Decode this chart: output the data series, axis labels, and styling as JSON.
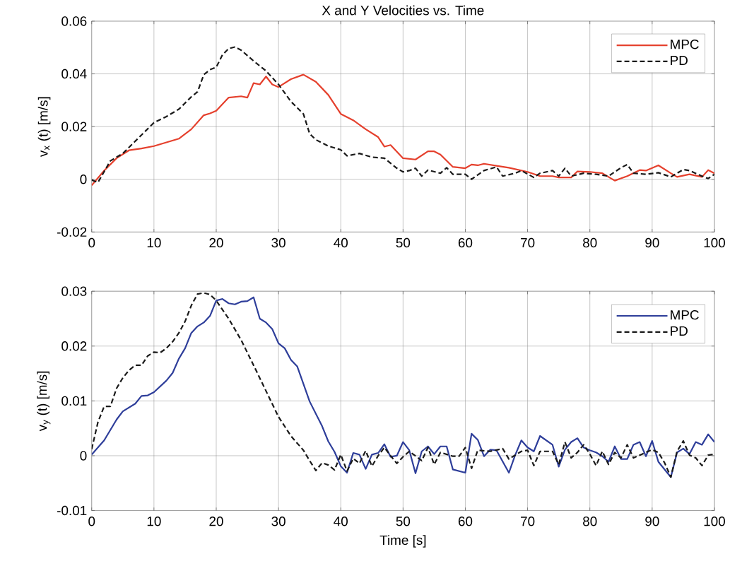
{
  "chart_data": [
    {
      "type": "line",
      "title": "X and Y Velocities vs. Time",
      "ylabel": "v$_{x}$ (t) [m/s]",
      "xlim": [
        0,
        100
      ],
      "xticks": [
        0,
        10,
        20,
        30,
        40,
        50,
        60,
        70,
        80,
        90,
        100
      ],
      "ylim": [
        -0.02,
        0.06
      ],
      "yticks": [
        -0.02,
        0,
        0.02,
        0.04,
        0.06
      ],
      "grid": true,
      "legend": "top right",
      "series": [
        {
          "name": "MPC",
          "color": "#e5402d",
          "line_style": "solid",
          "x": [
            0,
            2,
            4,
            6,
            8,
            10,
            12,
            14,
            16,
            18,
            19,
            20,
            22,
            24,
            25,
            26,
            27,
            28,
            29,
            30,
            32,
            34,
            36,
            38,
            40,
            42,
            44,
            46,
            47,
            48,
            50,
            52,
            54,
            55,
            56,
            58,
            60,
            61,
            62,
            63,
            65,
            67,
            70,
            72,
            74,
            75,
            77,
            78,
            80,
            82,
            84,
            86,
            88,
            89,
            91,
            93,
            94,
            96,
            98,
            99,
            100
          ],
          "values": [
            -0.0023,
            0.0033,
            0.008,
            0.011,
            0.0117,
            0.0126,
            0.014,
            0.0154,
            0.019,
            0.0243,
            0.025,
            0.026,
            0.031,
            0.0315,
            0.031,
            0.0365,
            0.036,
            0.039,
            0.036,
            0.035,
            0.038,
            0.0397,
            0.037,
            0.032,
            0.0248,
            0.0224,
            0.019,
            0.016,
            0.0124,
            0.013,
            0.008,
            0.0075,
            0.0106,
            0.0106,
            0.0094,
            0.0047,
            0.0042,
            0.0056,
            0.0053,
            0.0059,
            0.0051,
            0.0044,
            0.0028,
            0.0012,
            0.0012,
            0.0007,
            0.0007,
            0.003,
            0.0028,
            0.0023,
            -0.0005,
            0.0012,
            0.0035,
            0.0033,
            0.0053,
            0.0023,
            0.0009,
            0.0019,
            0.0009,
            0.0035,
            0.0023
          ]
        },
        {
          "name": "PD",
          "color": "#1a1a1a",
          "line_style": "dashed",
          "x": [
            0,
            1,
            3,
            5,
            8,
            10,
            12,
            14,
            16,
            17,
            18,
            19,
            20,
            21,
            22,
            23,
            24,
            26,
            28,
            30,
            32,
            34,
            35,
            36,
            38,
            40,
            41,
            43,
            45,
            47,
            49,
            50,
            51,
            52,
            53,
            54,
            56,
            57,
            58,
            60,
            61,
            63,
            65,
            66,
            68,
            69,
            71,
            72,
            74,
            75,
            76,
            77,
            79,
            81,
            83,
            85,
            86,
            87,
            89,
            91,
            93,
            95,
            96,
            98,
            99,
            100
          ],
          "values": [
            -0.0003,
            -0.0012,
            0.007,
            0.0098,
            0.0168,
            0.0215,
            0.0238,
            0.0266,
            0.0313,
            0.0332,
            0.0397,
            0.0416,
            0.0425,
            0.0472,
            0.0496,
            0.0502,
            0.049,
            0.0449,
            0.0411,
            0.036,
            0.0295,
            0.0248,
            0.0173,
            0.015,
            0.0126,
            0.0112,
            0.0089,
            0.0098,
            0.0084,
            0.008,
            0.0042,
            0.0028,
            0.0033,
            0.0042,
            0.0012,
            0.0035,
            0.0023,
            0.0044,
            0.0019,
            0.0019,
            0,
            0.0033,
            0.0047,
            0.0012,
            0.0023,
            0.0033,
            0.0007,
            0.0023,
            0.0033,
            0.0012,
            0.0042,
            0.0012,
            0.0023,
            0.0019,
            0.0012,
            0.0044,
            0.0056,
            0.0023,
            0.0019,
            0.0025,
            0.0009,
            0.0037,
            0.0033,
            0.0012,
            0.0003,
            0.0019
          ]
        }
      ]
    },
    {
      "type": "line",
      "xlabel": "Time [s]",
      "ylabel": "v$_{y}$ (t) [m/s]",
      "xlim": [
        0,
        100
      ],
      "xticks": [
        0,
        10,
        20,
        30,
        40,
        50,
        60,
        70,
        80,
        90,
        100
      ],
      "ylim": [
        -0.01,
        0.03
      ],
      "yticks": [
        -0.01,
        0,
        0.01,
        0.02,
        0.03
      ],
      "grid": true,
      "legend": "top right",
      "series": [
        {
          "name": "MPC",
          "color": "#2e3e9a",
          "line_style": "solid",
          "x": [
            0,
            2,
            4,
            5,
            7,
            8,
            9,
            10,
            12,
            13,
            14,
            15,
            16,
            17,
            18,
            19,
            20,
            21,
            22,
            23,
            24,
            25,
            26,
            27,
            28,
            29,
            30,
            31,
            32,
            33,
            35,
            37,
            38,
            39,
            40,
            41,
            42,
            43,
            44,
            45,
            46,
            47,
            48,
            49,
            50,
            51,
            52,
            53,
            54,
            55,
            56,
            57,
            58,
            60,
            61,
            62,
            63,
            64,
            65,
            67,
            68,
            69,
            70,
            71,
            72,
            74,
            75,
            76,
            77,
            78,
            79,
            80,
            81,
            82,
            83,
            84,
            85,
            86,
            87,
            88,
            89,
            90,
            91,
            93,
            94,
            95,
            96,
            97,
            98,
            99,
            100
          ],
          "values": [
            0.0002,
            0.0028,
            0.0066,
            0.0081,
            0.0095,
            0.0109,
            0.011,
            0.0116,
            0.0137,
            0.0151,
            0.0177,
            0.0196,
            0.0224,
            0.0236,
            0.0243,
            0.0255,
            0.0283,
            0.0286,
            0.0278,
            0.0276,
            0.0281,
            0.0282,
            0.0289,
            0.025,
            0.0243,
            0.0231,
            0.0205,
            0.0196,
            0.0175,
            0.0163,
            0.0099,
            0.0054,
            0.0026,
            0.0007,
            -0.0019,
            -0.0031,
            0.0005,
            0.0002,
            -0.0024,
            0.0002,
            0.0005,
            0.0021,
            -0.0002,
            0,
            0.0025,
            0.001,
            -0.0032,
            0.0008,
            0.0017,
            0.0003,
            0.0017,
            0.0017,
            -0.0025,
            -0.0031,
            0.004,
            0.0029,
            -0.0001,
            0.0011,
            0.001,
            -0.0031,
            0.0001,
            0.0028,
            0.0015,
            0.0008,
            0.0036,
            0.002,
            -0.002,
            0.0011,
            0.0025,
            0.0032,
            0.0015,
            0.001,
            0.0006,
            -0.0001,
            -0.0011,
            0.0017,
            -0.0006,
            -0.0006,
            0.002,
            0.0025,
            -0.0001,
            0.0027,
            -0.0011,
            -0.0039,
            0.0006,
            0.0013,
            0.0003,
            0.0025,
            0.002,
            0.0039,
            0.0025
          ]
        },
        {
          "name": "PD",
          "color": "#1a1a1a",
          "line_style": "dashed",
          "x": [
            0,
            1,
            2,
            3,
            4,
            5,
            6,
            7,
            8,
            9,
            10,
            11,
            12,
            13,
            14,
            15,
            16,
            17,
            18,
            19,
            20,
            22,
            24,
            26,
            28,
            30,
            32,
            34,
            35,
            36,
            37,
            38,
            39,
            40,
            41,
            42,
            43,
            44,
            45,
            46,
            47,
            48,
            49,
            50,
            51,
            53,
            54,
            55,
            56,
            58,
            59,
            60,
            61,
            62,
            64,
            66,
            67,
            69,
            70,
            71,
            72,
            74,
            75,
            76,
            77,
            78,
            79,
            80,
            81,
            82,
            83,
            84,
            85,
            86,
            87,
            88,
            90,
            91,
            92,
            93,
            94,
            95,
            96,
            97,
            98,
            99,
            100
          ],
          "values": [
            0.0012,
            0.0061,
            0.009,
            0.009,
            0.0123,
            0.0142,
            0.0156,
            0.0165,
            0.0165,
            0.0182,
            0.0189,
            0.0188,
            0.0196,
            0.0208,
            0.0224,
            0.0245,
            0.0274,
            0.0295,
            0.0297,
            0.0294,
            0.0283,
            0.025,
            0.0211,
            0.0165,
            0.0118,
            0.0071,
            0.0036,
            0.001,
            -0.0009,
            -0.0027,
            -0.0013,
            -0.0017,
            -0.0026,
            0.0002,
            -0.0028,
            -0.0005,
            -0.0014,
            0.0009,
            -0.0019,
            0,
            0.0015,
            0,
            -0.0014,
            -0.0002,
            0.0008,
            -0.0009,
            0.0015,
            -0.0016,
            0.0006,
            -0.0001,
            -0.0001,
            0.0015,
            -0.0023,
            0.001,
            0.0008,
            0.0013,
            -0.0006,
            0.0008,
            0.001,
            -0.0018,
            0.0008,
            0.0008,
            -0.0016,
            0.0025,
            -0.0004,
            0.0006,
            0.002,
            0.0003,
            -0.0018,
            0.0008,
            -0.0016,
            0.0006,
            -0.0004,
            0.002,
            -0.0004,
            0.0001,
            0.0011,
            0.0006,
            -0.0013,
            -0.0039,
            0.0008,
            0.0027,
            0.0001,
            -0.0004,
            -0.0018,
            0.0001,
            0.0003
          ]
        }
      ]
    }
  ]
}
